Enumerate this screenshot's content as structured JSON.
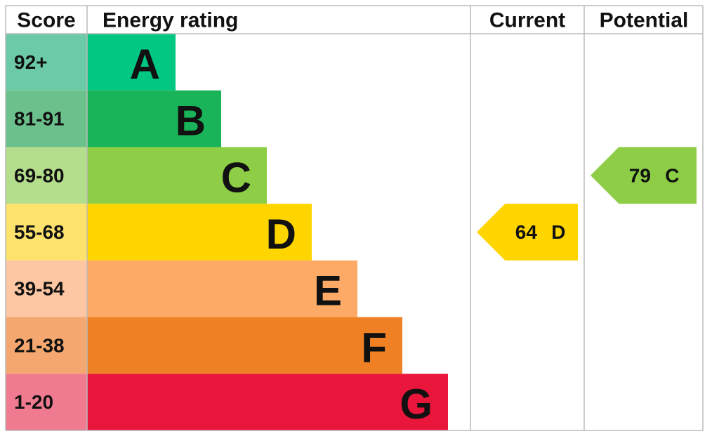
{
  "header": {
    "score": "Score",
    "rating": "Energy rating",
    "current": "Current",
    "potential": "Potential"
  },
  "bands": [
    {
      "range": "92+",
      "letter": "A"
    },
    {
      "range": "81-91",
      "letter": "B"
    },
    {
      "range": "69-80",
      "letter": "C"
    },
    {
      "range": "55-68",
      "letter": "D"
    },
    {
      "range": "39-54",
      "letter": "E"
    },
    {
      "range": "21-38",
      "letter": "F"
    },
    {
      "range": "1-20",
      "letter": "G"
    }
  ],
  "current": {
    "score": 64,
    "letter": "D"
  },
  "potential": {
    "score": 79,
    "letter": "C"
  }
}
